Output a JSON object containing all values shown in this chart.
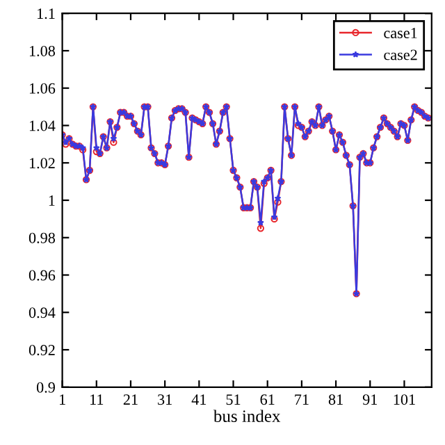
{
  "chart_data": {
    "type": "line",
    "xlabel": "bus index",
    "x": [
      1,
      2,
      3,
      4,
      5,
      6,
      7,
      8,
      9,
      10,
      11,
      12,
      13,
      14,
      15,
      16,
      17,
      18,
      19,
      20,
      21,
      22,
      23,
      24,
      25,
      26,
      27,
      28,
      29,
      30,
      31,
      32,
      33,
      34,
      35,
      36,
      37,
      38,
      39,
      40,
      41,
      42,
      43,
      44,
      45,
      46,
      47,
      48,
      49,
      50,
      51,
      52,
      53,
      54,
      55,
      56,
      57,
      58,
      59,
      60,
      61,
      62,
      63,
      64,
      65,
      66,
      67,
      68,
      69,
      70,
      71,
      72,
      73,
      74,
      75,
      76,
      77,
      78,
      79,
      80,
      81,
      82,
      83,
      84,
      85,
      86,
      87,
      88,
      89,
      90,
      91,
      92,
      93,
      94,
      95,
      96,
      97,
      98,
      99,
      100,
      101,
      102,
      103,
      104,
      105,
      106,
      107,
      108
    ],
    "series": [
      {
        "name": "case1",
        "color": "#e8262b",
        "marker": "circle",
        "values": [
          1.035,
          1.03,
          1.033,
          1.03,
          1.029,
          1.029,
          1.027,
          1.011,
          1.016,
          1.05,
          1.026,
          1.025,
          1.034,
          1.028,
          1.042,
          1.031,
          1.039,
          1.047,
          1.047,
          1.045,
          1.045,
          1.041,
          1.037,
          1.035,
          1.05,
          1.05,
          1.028,
          1.025,
          1.02,
          1.02,
          1.019,
          1.029,
          1.044,
          1.048,
          1.049,
          1.049,
          1.047,
          1.023,
          1.044,
          1.043,
          1.042,
          1.041,
          1.05,
          1.047,
          1.041,
          1.03,
          1.037,
          1.047,
          1.05,
          1.033,
          1.016,
          1.012,
          1.007,
          0.996,
          0.996,
          0.996,
          1.01,
          1.007,
          0.985,
          1.009,
          1.012,
          1.016,
          0.99,
          0.999,
          1.01,
          1.05,
          1.033,
          1.024,
          1.05,
          1.04,
          1.039,
          1.034,
          1.037,
          1.042,
          1.04,
          1.05,
          1.04,
          1.043,
          1.045,
          1.037,
          1.027,
          1.035,
          1.031,
          1.024,
          1.019,
          0.997,
          0.95,
          1.023,
          1.025,
          1.02,
          1.02,
          1.028,
          1.034,
          1.039,
          1.044,
          1.041,
          1.039,
          1.037,
          1.034,
          1.041,
          1.04,
          1.032,
          1.043,
          1.05,
          1.048,
          1.047,
          1.045,
          1.044
        ]
      },
      {
        "name": "case2",
        "color": "#3a3adf",
        "marker": "star",
        "values": [
          1.035,
          1.031,
          1.033,
          1.03,
          1.029,
          1.029,
          1.028,
          1.011,
          1.016,
          1.05,
          1.028,
          1.025,
          1.034,
          1.028,
          1.042,
          1.033,
          1.039,
          1.047,
          1.047,
          1.045,
          1.045,
          1.041,
          1.037,
          1.035,
          1.05,
          1.05,
          1.028,
          1.025,
          1.02,
          1.02,
          1.019,
          1.029,
          1.044,
          1.048,
          1.049,
          1.049,
          1.047,
          1.023,
          1.044,
          1.043,
          1.042,
          1.041,
          1.05,
          1.047,
          1.041,
          1.03,
          1.037,
          1.047,
          1.05,
          1.033,
          1.016,
          1.012,
          1.007,
          0.996,
          0.996,
          0.996,
          1.01,
          1.007,
          0.988,
          1.01,
          1.012,
          1.016,
          0.991,
          1.001,
          1.01,
          1.05,
          1.033,
          1.024,
          1.05,
          1.041,
          1.039,
          1.034,
          1.037,
          1.042,
          1.04,
          1.05,
          1.04,
          1.043,
          1.045,
          1.037,
          1.027,
          1.035,
          1.031,
          1.024,
          1.019,
          0.997,
          0.95,
          1.023,
          1.025,
          1.02,
          1.02,
          1.028,
          1.034,
          1.039,
          1.044,
          1.041,
          1.039,
          1.037,
          1.034,
          1.041,
          1.04,
          1.032,
          1.043,
          1.05,
          1.048,
          1.047,
          1.045,
          1.044
        ]
      }
    ],
    "xlim": [
      1,
      109
    ],
    "xticks": [
      1,
      11,
      21,
      31,
      41,
      51,
      61,
      71,
      81,
      91,
      101
    ],
    "ylim": [
      0.9,
      1.1
    ],
    "yticks": [
      0.9,
      0.92,
      0.94,
      0.96,
      0.98,
      1,
      1.02,
      1.04,
      1.06,
      1.08,
      1.1
    ],
    "grid": false,
    "legend": "top right",
    "line_style": "solid"
  }
}
